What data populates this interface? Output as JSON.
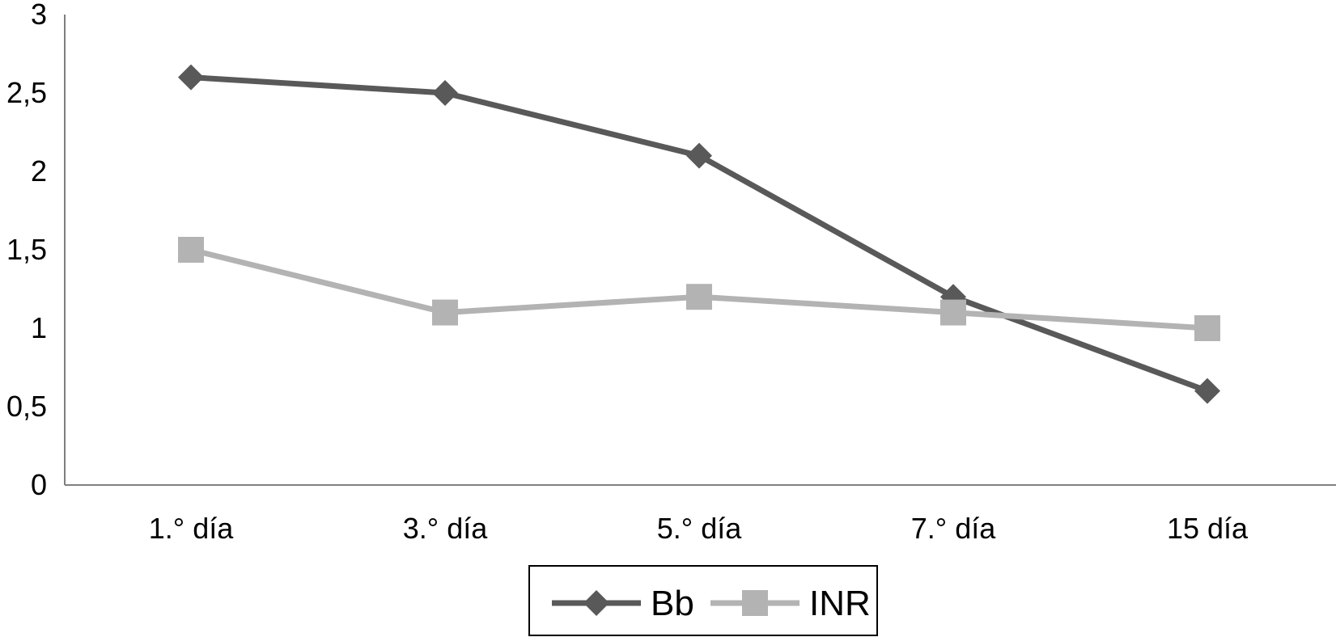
{
  "chart_data": {
    "type": "line",
    "title": "",
    "xlabel": "",
    "ylabel": "",
    "categories": [
      "1.° día",
      "3.° día",
      "5.° día",
      "7.° día",
      "15 día"
    ],
    "ylim": [
      0,
      3
    ],
    "y_ticks": [
      "0",
      "0,5",
      "1",
      "1,5",
      "2",
      "2,5",
      "3"
    ],
    "grid": false,
    "legend_position": "bottom",
    "series": [
      {
        "name": "Bb",
        "marker": "diamond",
        "color": "#595959",
        "values": [
          2.6,
          2.5,
          2.1,
          1.2,
          0.6
        ]
      },
      {
        "name": "INR",
        "marker": "square",
        "color": "#b3b3b3",
        "values": [
          1.5,
          1.1,
          1.2,
          1.1,
          1.0
        ]
      }
    ]
  }
}
